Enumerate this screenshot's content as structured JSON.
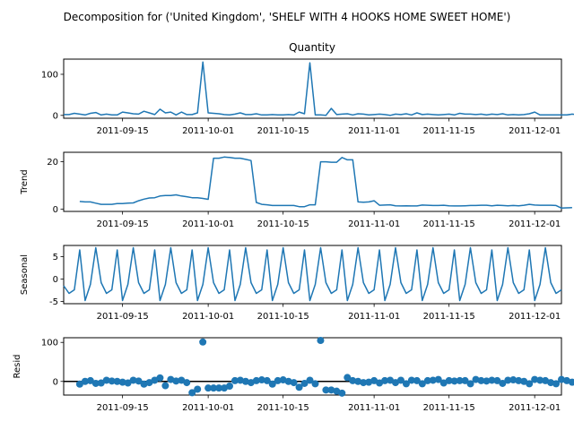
{
  "suptitle": "Decomposition for ('United Kingdom', 'SHELF WITH 4 HOOKS HOME SWEET HOME')",
  "line_color": "#1f77b4",
  "x_tick_labels": [
    "2011-09-15",
    "2011-10-01",
    "2011-10-15",
    "2011-11-01",
    "2011-11-15",
    "2011-12-01"
  ],
  "chart_data": [
    {
      "type": "line",
      "title": "Quantity",
      "ylabel": "",
      "x_start": "2011-09-04",
      "x_end": "2011-12-06",
      "ylim": [
        -7,
        137
      ],
      "yticks": [
        0,
        100
      ],
      "grid": false,
      "values": [
        2,
        2,
        5,
        3,
        1,
        5,
        7,
        1,
        3,
        1,
        1,
        8,
        6,
        4,
        3,
        10,
        6,
        2,
        15,
        6,
        8,
        1,
        8,
        2,
        2,
        6,
        130,
        6,
        5,
        4,
        2,
        1,
        3,
        6,
        2,
        2,
        4,
        1,
        1,
        2,
        1,
        1,
        2,
        1,
        8,
        4,
        128,
        1,
        1,
        0,
        17,
        2,
        3,
        4,
        1,
        4,
        3,
        1,
        2,
        3,
        2,
        0,
        3,
        2,
        4,
        1,
        6,
        2,
        3,
        2,
        1,
        2,
        3,
        1,
        5,
        3,
        3,
        2,
        3,
        1,
        3,
        2,
        4,
        1,
        2,
        1,
        2,
        4,
        8,
        1,
        1,
        1,
        1,
        1,
        1,
        3,
        2
      ]
    },
    {
      "type": "line",
      "title": "",
      "ylabel": "Trend",
      "x_start": "2011-09-04",
      "x_end": "2011-12-06",
      "ylim": [
        -1,
        24
      ],
      "yticks": [
        0,
        20
      ],
      "grid": false,
      "values": [
        null,
        null,
        null,
        3.2,
        3.0,
        3.0,
        2.5,
        2.0,
        2.0,
        2.0,
        2.3,
        2.3,
        2.5,
        2.6,
        3.5,
        4.2,
        4.7,
        4.8,
        5.5,
        5.7,
        5.7,
        6.0,
        5.5,
        5.2,
        4.8,
        4.8,
        4.5,
        4.1,
        21.5,
        21.5,
        22.0,
        21.8,
        21.5,
        21.5,
        21.0,
        20.5,
        2.8,
        2.0,
        1.8,
        1.5,
        1.5,
        1.5,
        1.5,
        1.5,
        1.0,
        1.0,
        1.8,
        1.8,
        20.0,
        20.0,
        19.8,
        19.8,
        21.8,
        20.8,
        20.8,
        3.0,
        2.9,
        3.0,
        3.5,
        1.6,
        1.7,
        1.8,
        1.4,
        1.3,
        1.4,
        1.3,
        1.3,
        1.7,
        1.6,
        1.5,
        1.5,
        1.6,
        1.4,
        1.3,
        1.3,
        1.4,
        1.5,
        1.5,
        1.6,
        1.6,
        1.4,
        1.6,
        1.5,
        1.4,
        1.5,
        1.4,
        1.6,
        2.0,
        1.7,
        1.6,
        1.6,
        1.6,
        1.5,
        0.4,
        0.5,
        0.6,
        null
      ]
    },
    {
      "type": "line",
      "title": "",
      "ylabel": "Seasonal",
      "x_start": "2011-09-04",
      "x_end": "2011-12-06",
      "ylim": [
        -5.5,
        7.5
      ],
      "yticks": [
        -5,
        0,
        5
      ],
      "grid": false,
      "values": [
        -1.5,
        -3.2,
        -2.4,
        6.5,
        -4.8,
        -1.2,
        7.0,
        -0.8,
        -3.2,
        -2.4,
        6.5,
        -4.8,
        -1.2,
        7.0,
        -0.8,
        -3.2,
        -2.4,
        6.5,
        -4.8,
        -1.2,
        7.0,
        -0.8,
        -3.2,
        -2.4,
        6.5,
        -4.8,
        -1.2,
        7.0,
        -0.8,
        -3.2,
        -2.4,
        6.5,
        -4.8,
        -1.2,
        7.0,
        -0.8,
        -3.2,
        -2.4,
        6.5,
        -4.8,
        -1.2,
        7.0,
        -0.8,
        -3.2,
        -2.4,
        6.5,
        -4.8,
        -1.2,
        7.0,
        -0.8,
        -3.2,
        -2.4,
        6.5,
        -4.8,
        -1.2,
        7.0,
        -0.8,
        -3.2,
        -2.4,
        6.5,
        -4.8,
        -1.2,
        7.0,
        -0.8,
        -3.2,
        -2.4,
        6.5,
        -4.8,
        -1.2,
        7.0,
        -0.8,
        -3.2,
        -2.4,
        6.5,
        -4.8,
        -1.2,
        7.0,
        -0.8,
        -3.2,
        -2.4,
        6.5,
        -4.8,
        -1.2,
        7.0,
        -0.8,
        -3.2,
        -2.4,
        6.5,
        -4.8,
        -1.2,
        7.0,
        -0.8,
        -3.2,
        -2.4
      ]
    },
    {
      "type": "scatter",
      "title": "",
      "ylabel": "Resid",
      "x_start": "2011-09-04",
      "x_end": "2011-12-06",
      "ylim": [
        -35,
        112
      ],
      "yticks": [
        0,
        100
      ],
      "zero_line": true,
      "grid": false,
      "values": [
        null,
        null,
        null,
        -7,
        0,
        2,
        -5,
        -4,
        3,
        1,
        0,
        -2,
        -4,
        3,
        1,
        -7,
        -3,
        3,
        9,
        -11,
        5,
        1,
        3,
        -3,
        -29,
        -20,
        101,
        -17,
        -17,
        -17,
        -17,
        -12,
        2,
        3,
        0,
        -3,
        2,
        4,
        2,
        -7,
        2,
        4,
        0,
        -3,
        -15,
        -5,
        3,
        -6,
        105,
        -22,
        -22,
        -25,
        -30,
        10,
        2,
        0,
        -3,
        -2,
        2,
        -4,
        2,
        3,
        -3,
        3,
        -6,
        3,
        2,
        -6,
        2,
        3,
        5,
        -4,
        2,
        1,
        2,
        2,
        -6,
        5,
        2,
        1,
        3,
        2,
        -5,
        3,
        4,
        2,
        0,
        -6,
        5,
        3,
        2,
        -3,
        -6,
        5,
        2,
        -2,
        null
      ]
    }
  ]
}
